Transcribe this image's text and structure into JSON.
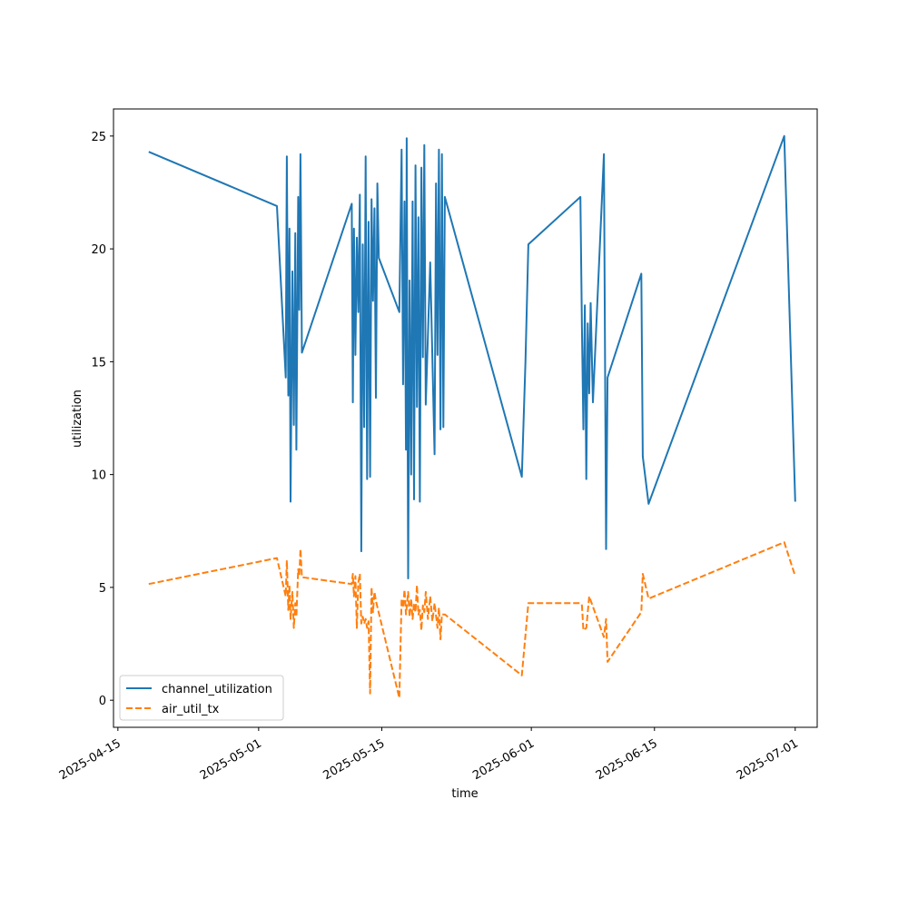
{
  "chart_data": {
    "type": "line",
    "xlabel": "time",
    "ylabel": "utilization",
    "x_type": "date",
    "xlim": [
      "2025-04-14T12:00",
      "2025-07-03T12:00"
    ],
    "ylim": [
      -1.2,
      26.2
    ],
    "x_ticks": [
      "2025-04-15",
      "2025-05-01",
      "2025-05-15",
      "2025-06-01",
      "2025-06-15",
      "2025-07-01"
    ],
    "x_tick_labels": [
      "2025-04-15",
      "2025-05-01",
      "2025-05-15",
      "2025-06-01",
      "2025-06-15",
      "2025-07-01"
    ],
    "y_ticks": [
      0,
      5,
      10,
      15,
      20,
      25
    ],
    "y_tick_labels": [
      "0",
      "5",
      "10",
      "15",
      "20",
      "25"
    ],
    "grid": false,
    "legend_position": "lower-left",
    "series": [
      {
        "name": "channel_utilization",
        "color": "#1f77b4",
        "style": "solid",
        "points": [
          [
            "2025-04-18T12:00",
            24.3
          ],
          [
            "2025-05-03T02:00",
            21.9
          ],
          [
            "2025-05-04T02:00",
            14.3
          ],
          [
            "2025-05-04T05:00",
            24.1
          ],
          [
            "2025-05-04T09:00",
            13.5
          ],
          [
            "2025-05-04T12:00",
            20.9
          ],
          [
            "2025-05-04T15:00",
            8.8
          ],
          [
            "2025-05-04T20:00",
            19.0
          ],
          [
            "2025-05-05T00:00",
            12.2
          ],
          [
            "2025-05-05T04:00",
            20.7
          ],
          [
            "2025-05-05T07:00",
            11.1
          ],
          [
            "2025-05-05T12:00",
            22.3
          ],
          [
            "2025-05-05T15:00",
            17.3
          ],
          [
            "2025-05-05T18:00",
            24.2
          ],
          [
            "2025-05-05T22:00",
            15.4
          ],
          [
            "2025-05-11T14:00",
            22.0
          ],
          [
            "2025-05-11T17:00",
            13.2
          ],
          [
            "2025-05-11T20:00",
            20.9
          ],
          [
            "2025-05-12T00:00",
            15.3
          ],
          [
            "2025-05-12T04:00",
            20.5
          ],
          [
            "2025-05-12T08:00",
            17.2
          ],
          [
            "2025-05-12T12:00",
            22.4
          ],
          [
            "2025-05-12T16:00",
            6.6
          ],
          [
            "2025-05-12T20:00",
            20.2
          ],
          [
            "2025-05-13T00:00",
            12.1
          ],
          [
            "2025-05-13T04:00",
            24.1
          ],
          [
            "2025-05-13T08:00",
            9.8
          ],
          [
            "2025-05-13T12:00",
            21.2
          ],
          [
            "2025-05-13T16:00",
            9.9
          ],
          [
            "2025-05-13T20:00",
            22.2
          ],
          [
            "2025-05-14T00:00",
            17.7
          ],
          [
            "2025-05-14T04:00",
            21.8
          ],
          [
            "2025-05-14T08:00",
            13.4
          ],
          [
            "2025-05-14T12:00",
            22.9
          ],
          [
            "2025-05-14T16:00",
            19.6
          ],
          [
            "2025-05-17T00:00",
            17.2
          ],
          [
            "2025-05-17T06:00",
            24.4
          ],
          [
            "2025-05-17T10:00",
            14.0
          ],
          [
            "2025-05-17T14:00",
            22.1
          ],
          [
            "2025-05-17T18:00",
            11.1
          ],
          [
            "2025-05-17T20:00",
            24.9
          ],
          [
            "2025-05-18T00:00",
            5.4
          ],
          [
            "2025-05-18T04:00",
            18.6
          ],
          [
            "2025-05-18T08:00",
            10.0
          ],
          [
            "2025-05-18T12:00",
            22.1
          ],
          [
            "2025-05-18T16:00",
            8.9
          ],
          [
            "2025-05-18T20:00",
            23.7
          ],
          [
            "2025-05-19T00:00",
            13.0
          ],
          [
            "2025-05-19T04:00",
            21.4
          ],
          [
            "2025-05-19T08:00",
            8.8
          ],
          [
            "2025-05-19T12:00",
            23.6
          ],
          [
            "2025-05-19T16:00",
            15.2
          ],
          [
            "2025-05-19T20:00",
            24.6
          ],
          [
            "2025-05-20T00:00",
            13.1
          ],
          [
            "2025-05-20T12:00",
            19.4
          ],
          [
            "2025-05-21T00:00",
            10.9
          ],
          [
            "2025-05-21T04:00",
            22.9
          ],
          [
            "2025-05-21T08:00",
            15.3
          ],
          [
            "2025-05-21T12:00",
            24.4
          ],
          [
            "2025-05-21T16:00",
            12.0
          ],
          [
            "2025-05-21T20:00",
            24.2
          ],
          [
            "2025-05-22T00:00",
            12.1
          ],
          [
            "2025-05-22T04:00",
            22.3
          ],
          [
            "2025-05-30T22:00",
            9.9
          ],
          [
            "2025-05-31T08:00",
            15.0
          ],
          [
            "2025-05-31T16:00",
            20.2
          ],
          [
            "2025-06-06T14:00",
            22.3
          ],
          [
            "2025-06-06T18:00",
            16.5
          ],
          [
            "2025-06-06T22:00",
            12.0
          ],
          [
            "2025-06-07T02:00",
            17.5
          ],
          [
            "2025-06-07T06:00",
            9.8
          ],
          [
            "2025-06-07T10:00",
            16.7
          ],
          [
            "2025-06-07T14:00",
            13.6
          ],
          [
            "2025-06-07T18:00",
            17.6
          ],
          [
            "2025-06-08T00:00",
            13.2
          ],
          [
            "2025-06-09T06:00",
            24.2
          ],
          [
            "2025-06-09T12:00",
            6.7
          ],
          [
            "2025-06-09T16:00",
            14.3
          ],
          [
            "2025-06-13T12:00",
            18.9
          ],
          [
            "2025-06-13T16:00",
            10.8
          ],
          [
            "2025-06-14T08:00",
            8.7
          ],
          [
            "2025-06-29T18:00",
            25.0
          ],
          [
            "2025-07-01T00:00",
            8.8
          ]
        ]
      },
      {
        "name": "air_util_tx",
        "color": "#ff7f0e",
        "style": "dashed",
        "points": [
          [
            "2025-04-18T12:00",
            5.15
          ],
          [
            "2025-05-03T02:00",
            6.3
          ],
          [
            "2025-05-04T02:00",
            4.6
          ],
          [
            "2025-05-04T05:00",
            6.2
          ],
          [
            "2025-05-04T09:00",
            4.0
          ],
          [
            "2025-05-04T12:00",
            5.1
          ],
          [
            "2025-05-04T15:00",
            3.6
          ],
          [
            "2025-05-04T20:00",
            4.8
          ],
          [
            "2025-05-05T00:00",
            3.2
          ],
          [
            "2025-05-05T04:00",
            4.3
          ],
          [
            "2025-05-05T07:00",
            3.7
          ],
          [
            "2025-05-05T12:00",
            5.8
          ],
          [
            "2025-05-05T15:00",
            5.5
          ],
          [
            "2025-05-05T18:00",
            6.7
          ],
          [
            "2025-05-05T22:00",
            5.45
          ],
          [
            "2025-05-11T14:00",
            5.15
          ],
          [
            "2025-05-11T17:00",
            5.6
          ],
          [
            "2025-05-11T20:00",
            4.6
          ],
          [
            "2025-05-12T00:00",
            5.5
          ],
          [
            "2025-05-12T04:00",
            3.2
          ],
          [
            "2025-05-12T08:00",
            5.2
          ],
          [
            "2025-05-12T12:00",
            5.6
          ],
          [
            "2025-05-12T16:00",
            3.4
          ],
          [
            "2025-05-12T20:00",
            3.7
          ],
          [
            "2025-05-13T00:00",
            3.4
          ],
          [
            "2025-05-13T04:00",
            3.6
          ],
          [
            "2025-05-13T08:00",
            3.2
          ],
          [
            "2025-05-13T12:00",
            3.5
          ],
          [
            "2025-05-13T16:00",
            0.3
          ],
          [
            "2025-05-13T20:00",
            5.0
          ],
          [
            "2025-05-14T00:00",
            3.9
          ],
          [
            "2025-05-14T04:00",
            4.8
          ],
          [
            "2025-05-14T08:00",
            4.4
          ],
          [
            "2025-05-17T00:00",
            0.1
          ],
          [
            "2025-05-17T06:00",
            4.5
          ],
          [
            "2025-05-17T10:00",
            4.1
          ],
          [
            "2025-05-17T14:00",
            4.9
          ],
          [
            "2025-05-17T18:00",
            3.8
          ],
          [
            "2025-05-18T00:00",
            4.8
          ],
          [
            "2025-05-18T04:00",
            3.7
          ],
          [
            "2025-05-18T08:00",
            4.5
          ],
          [
            "2025-05-18T12:00",
            3.6
          ],
          [
            "2025-05-18T16:00",
            4.3
          ],
          [
            "2025-05-18T20:00",
            3.9
          ],
          [
            "2025-05-19T00:00",
            5.1
          ],
          [
            "2025-05-19T04:00",
            3.8
          ],
          [
            "2025-05-19T08:00",
            4.0
          ],
          [
            "2025-05-19T12:00",
            3.1
          ],
          [
            "2025-05-19T16:00",
            4.2
          ],
          [
            "2025-05-19T20:00",
            3.9
          ],
          [
            "2025-05-20T00:00",
            4.8
          ],
          [
            "2025-05-20T06:00",
            3.6
          ],
          [
            "2025-05-20T12:00",
            4.6
          ],
          [
            "2025-05-20T18:00",
            3.5
          ],
          [
            "2025-05-21T00:00",
            4.3
          ],
          [
            "2025-05-21T08:00",
            3.2
          ],
          [
            "2025-05-21T12:00",
            4.1
          ],
          [
            "2025-05-21T16:00",
            2.7
          ],
          [
            "2025-05-21T20:00",
            3.8
          ],
          [
            "2025-05-22T04:00",
            3.8
          ],
          [
            "2025-05-30T22:00",
            1.1
          ],
          [
            "2025-05-31T16:00",
            4.3
          ],
          [
            "2025-06-06T14:00",
            4.3
          ],
          [
            "2025-06-06T18:00",
            4.2
          ],
          [
            "2025-06-06T22:00",
            3.1
          ],
          [
            "2025-06-07T06:00",
            3.2
          ],
          [
            "2025-06-07T14:00",
            4.6
          ],
          [
            "2025-06-09T06:00",
            2.8
          ],
          [
            "2025-06-09T12:00",
            3.6
          ],
          [
            "2025-06-09T16:00",
            1.7
          ],
          [
            "2025-06-13T12:00",
            3.9
          ],
          [
            "2025-06-13T16:00",
            5.6
          ],
          [
            "2025-06-14T08:00",
            4.5
          ],
          [
            "2025-06-29T18:00",
            7.0
          ],
          [
            "2025-07-01T00:00",
            5.5
          ]
        ]
      }
    ]
  }
}
